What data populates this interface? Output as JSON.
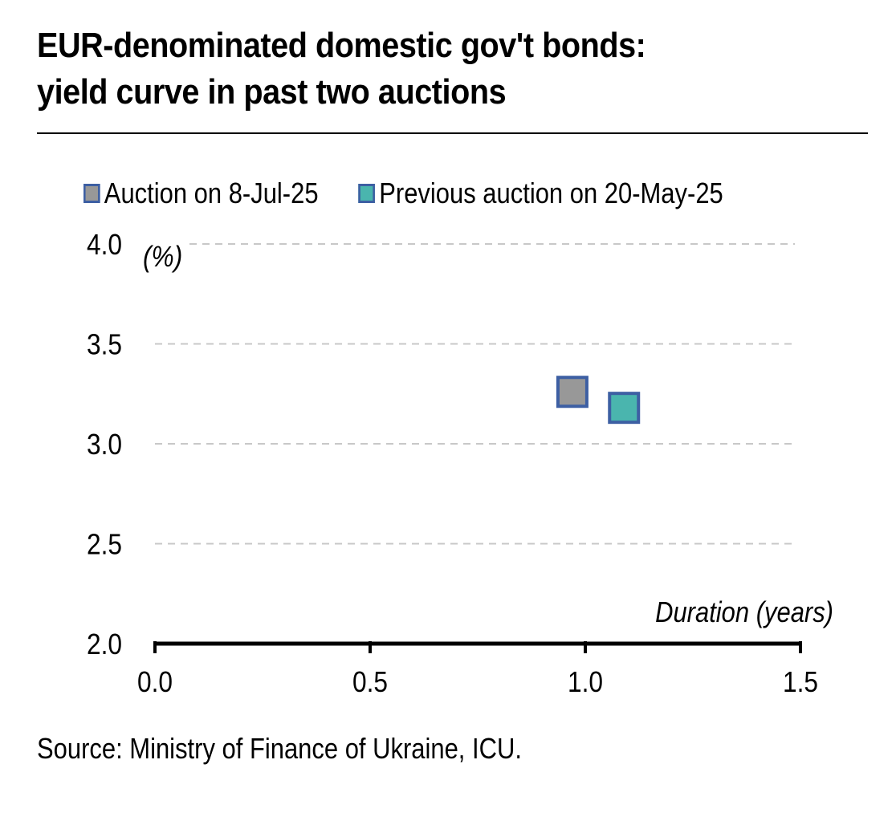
{
  "title": {
    "line1": "EUR-denominated domestic gov't bonds:",
    "line2": "yield curve in past two auctions"
  },
  "source": "Source: Ministry of Finance of Ukraine, ICU.",
  "colors": {
    "marker_border": "#3d5fa3",
    "grid": "#c8c8c8",
    "axis": "#000000"
  },
  "chart_data": {
    "type": "scatter",
    "ylabel": "(%)",
    "xlabel": "Duration (years)",
    "xlim": [
      0.0,
      1.5
    ],
    "ylim": [
      2.0,
      4.0
    ],
    "xticks": [
      "0.0",
      "0.5",
      "1.0",
      "1.5"
    ],
    "yticks": [
      "2.0",
      "2.5",
      "3.0",
      "3.5",
      "4.0"
    ],
    "grid": true,
    "legend_position": "top",
    "series": [
      {
        "name": "Auction on 8-Jul-25",
        "color": "#989898",
        "points": [
          {
            "x": 0.97,
            "y": 3.26
          }
        ]
      },
      {
        "name": "Previous auction on 20-May-25",
        "color": "#4ab5ae",
        "points": [
          {
            "x": 1.09,
            "y": 3.18
          }
        ]
      }
    ]
  }
}
